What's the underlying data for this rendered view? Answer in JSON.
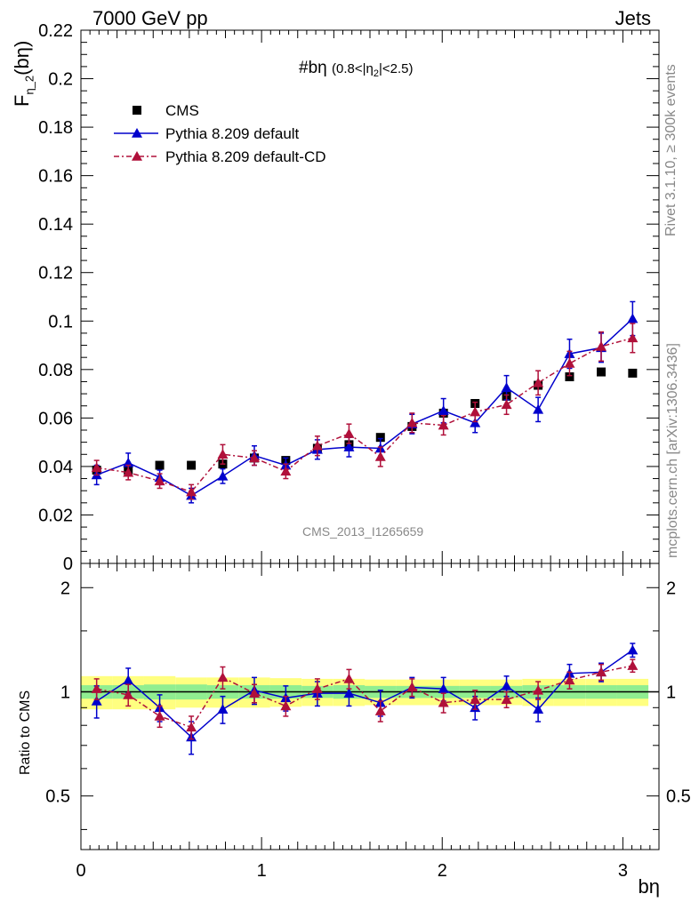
{
  "header": {
    "left": "7000 GeV pp",
    "right": "Jets"
  },
  "side": {
    "rivet": "Rivet 3.1.10, ≥ 300k events",
    "mcplots": "mcplots.cern.ch [arXiv:1306.3436]"
  },
  "watermark": "CMS_2013_I1265659",
  "chart_data": [
    {
      "type": "scatter",
      "panel": "main",
      "title_main": "#bη",
      "title_cut": "(0.8<|η",
      "title_cut_sub": "2",
      "title_cut_end": "|<2.5)",
      "ylabel": "F",
      "ylabel_sub": "η_2",
      "ylabel_arg": "(bη)",
      "xlabel": "bη",
      "xlim": [
        0,
        3.2
      ],
      "ylim": [
        0,
        0.22
      ],
      "yticks": [
        "0",
        "0.02",
        "0.04",
        "0.06",
        "0.08",
        "0.1",
        "0.12",
        "0.14",
        "0.16",
        "0.18",
        "0.2",
        "0.22"
      ],
      "x": [
        0.087,
        0.262,
        0.436,
        0.611,
        0.785,
        0.96,
        1.134,
        1.309,
        1.484,
        1.658,
        1.833,
        2.007,
        2.182,
        2.356,
        2.531,
        2.705,
        2.88,
        3.054
      ],
      "series": [
        {
          "name": "CMS",
          "color": "#000000",
          "values": [
            0.0385,
            0.0385,
            0.0405,
            0.0405,
            0.041,
            0.0435,
            0.0425,
            0.0475,
            0.049,
            0.052,
            0.0565,
            0.062,
            0.066,
            0.069,
            0.0735,
            0.077,
            0.079,
            0.0785
          ]
        },
        {
          "name": "Pythia 8.209 default",
          "color": "#0000cc",
          "values": [
            0.0365,
            0.0415,
            0.0355,
            0.028,
            0.036,
            0.0445,
            0.0405,
            0.047,
            0.048,
            0.0475,
            0.0575,
            0.063,
            0.058,
            0.0725,
            0.0635,
            0.0865,
            0.089,
            0.101
          ],
          "errors": [
            0.004,
            0.004,
            0.003,
            0.003,
            0.003,
            0.004,
            0.003,
            0.004,
            0.004,
            0.004,
            0.004,
            0.005,
            0.004,
            0.005,
            0.005,
            0.006,
            0.006,
            0.007
          ]
        },
        {
          "name": "Pythia 8.209 default-CD",
          "color": "#b0103a",
          "values": [
            0.0395,
            0.0375,
            0.034,
            0.0295,
            0.045,
            0.0435,
            0.038,
            0.0485,
            0.0535,
            0.044,
            0.058,
            0.057,
            0.0625,
            0.0655,
            0.0745,
            0.0825,
            0.0895,
            0.093
          ],
          "errors": [
            0.003,
            0.003,
            0.003,
            0.003,
            0.004,
            0.003,
            0.003,
            0.004,
            0.004,
            0.004,
            0.004,
            0.004,
            0.004,
            0.004,
            0.005,
            0.005,
            0.006,
            0.006
          ]
        }
      ]
    },
    {
      "type": "scatter",
      "panel": "ratio",
      "ylabel": "Ratio to CMS",
      "xlabel": "bη",
      "xlim": [
        0,
        3.2
      ],
      "ylim": [
        0.35,
        2.35
      ],
      "ytick_labels": [
        "0.5",
        "1",
        "2"
      ],
      "xtick_labels": [
        "0",
        "1",
        "2",
        "3"
      ],
      "band_inner_halfwidth": [
        0.045,
        0.045,
        0.05,
        0.05,
        0.045,
        0.045,
        0.045,
        0.04,
        0.045,
        0.04,
        0.04,
        0.04,
        0.04,
        0.04,
        0.045,
        0.045,
        0.045,
        0.045
      ],
      "band_outer_halfwidth": [
        0.11,
        0.11,
        0.11,
        0.1,
        0.1,
        0.1,
        0.095,
        0.09,
        0.09,
        0.085,
        0.085,
        0.085,
        0.085,
        0.085,
        0.09,
        0.09,
        0.09,
        0.09
      ],
      "band_inner_color": "#90ee90",
      "band_outer_color": "#ffff80",
      "series": [
        {
          "name": "Pythia 8.209 default",
          "color": "#0000cc",
          "values": [
            0.94,
            1.08,
            0.9,
            0.74,
            0.89,
            1.01,
            0.96,
            0.99,
            0.99,
            0.93,
            1.03,
            1.02,
            0.9,
            1.04,
            0.89,
            1.13,
            1.14,
            1.32
          ],
          "errors": [
            0.1,
            0.09,
            0.08,
            0.08,
            0.08,
            0.09,
            0.08,
            0.08,
            0.08,
            0.08,
            0.07,
            0.08,
            0.07,
            0.07,
            0.07,
            0.07,
            0.07,
            0.06
          ]
        },
        {
          "name": "Pythia 8.209 default-CD",
          "color": "#b0103a",
          "values": [
            1.02,
            0.98,
            0.85,
            0.79,
            1.1,
            0.99,
            0.91,
            1.02,
            1.09,
            0.88,
            1.03,
            0.93,
            0.95,
            0.95,
            1.01,
            1.08,
            1.14,
            1.19
          ],
          "errors": [
            0.07,
            0.07,
            0.06,
            0.06,
            0.08,
            0.06,
            0.06,
            0.07,
            0.07,
            0.06,
            0.06,
            0.06,
            0.06,
            0.05,
            0.06,
            0.06,
            0.06,
            0.05
          ]
        }
      ]
    }
  ]
}
